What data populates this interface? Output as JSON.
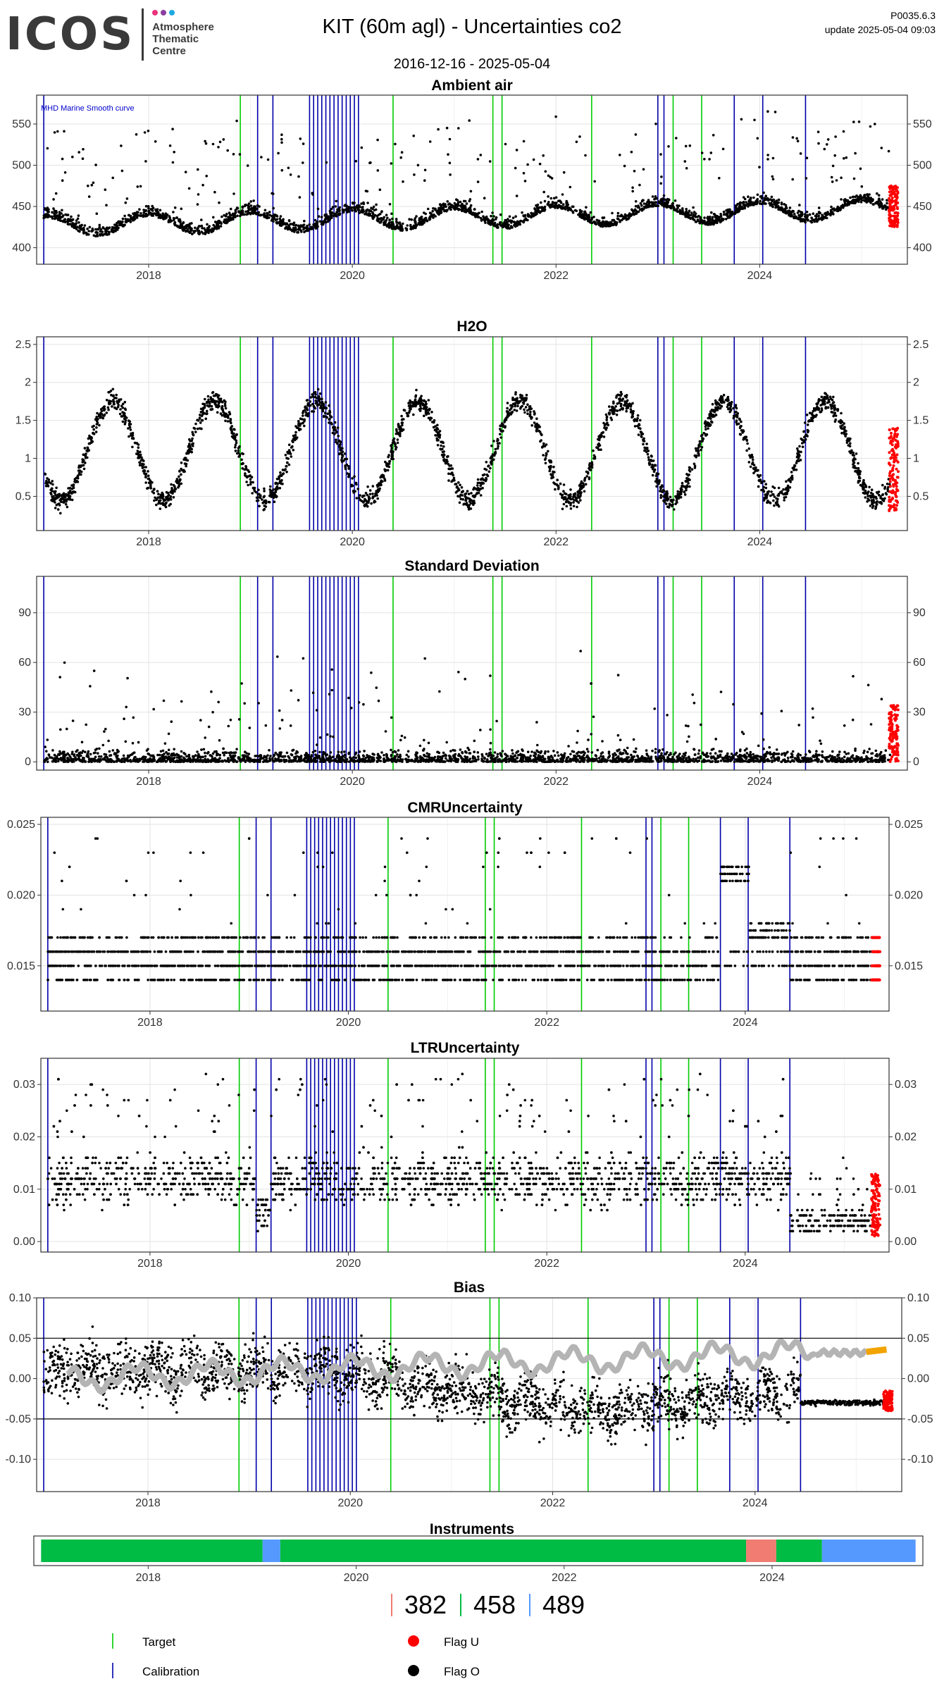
{
  "header": {
    "logo_text": "ICOS",
    "logo_sub_1": "Atmosphere",
    "logo_sub_2": "Thematic",
    "logo_sub_3": "Centre",
    "title": "KIT  (60m agl) - Uncertainties co2",
    "date_range": "2016-12-16 - 2025-05-04",
    "version": "P0035.6.3",
    "update": "update  2025-05-04 09:03"
  },
  "colors": {
    "target": "#00cc00",
    "calibration": "#0000aa",
    "flag_u": "#ff0000",
    "flag_o": "#000000",
    "smooth_curve": "#b4b4b4",
    "bias_recent": "#f2a400",
    "instrument_382": "#f07c72",
    "instrument_458": "#00bb44",
    "instrument_489": "#5599ff"
  },
  "events": {
    "target": [
      2018.9,
      2020.4,
      2021.38,
      2021.47,
      2022.35,
      2023.15,
      2023.43
    ],
    "calibration": [
      2016.97,
      2019.07,
      2019.22,
      2019.58,
      2019.62,
      2019.66,
      2019.7,
      2019.74,
      2019.78,
      2019.82,
      2019.86,
      2019.9,
      2019.94,
      2019.98,
      2020.02,
      2020.06,
      2023.0,
      2023.06,
      2023.75,
      2024.03,
      2024.45
    ]
  },
  "chart_data": [
    {
      "type": "scatter",
      "title": "Ambient air",
      "xlim": [
        2016.9,
        2025.45
      ],
      "ylim": [
        380,
        585
      ],
      "yticks": [
        400,
        450,
        500,
        550
      ],
      "xticks": [
        2018,
        2020,
        2022,
        2024
      ],
      "annotation": "MHD Marine Smooth curve",
      "baseline": 430,
      "seasonal_amp": 12,
      "trend": 2.4,
      "noise": 22,
      "spike_prob": 0.08,
      "spike_max": 110,
      "red_tail_range": [
        425,
        475
      ]
    },
    {
      "type": "scatter",
      "title": "H2O",
      "xlim": [
        2016.9,
        2025.45
      ],
      "ylim": [
        0.05,
        2.6
      ],
      "yticks": [
        0.5,
        1.0,
        1.5,
        2.0,
        2.5
      ],
      "xticks": [
        2018,
        2020,
        2022,
        2024
      ],
      "seasonal_low": 0.45,
      "seasonal_high": 1.75,
      "noise": 0.22,
      "red_tail_range": [
        0.3,
        1.4
      ]
    },
    {
      "type": "scatter",
      "title": "Standard Deviation",
      "xlim": [
        2016.9,
        2025.45
      ],
      "ylim": [
        -5,
        112
      ],
      "yticks": [
        0,
        30,
        60,
        90
      ],
      "xticks": [
        2018,
        2020,
        2022,
        2024
      ],
      "base_max": 8,
      "spike_prob": 0.06,
      "spike_max": 70,
      "red_tail_range": [
        0,
        35
      ]
    },
    {
      "type": "scatter",
      "title": "CMRUncertainty",
      "xlim": [
        2016.9,
        2025.45
      ],
      "ylim": [
        0.0118,
        0.0255
      ],
      "yticks": [
        0.015,
        0.02,
        0.025
      ],
      "ytick_labels": [
        "0.015",
        "0.020",
        "0.025"
      ],
      "xticks": [
        2018,
        2020,
        2022,
        2024
      ],
      "levels": [
        0.014,
        0.015,
        0.016,
        0.017
      ],
      "high_levels_2023": [
        0.021,
        0.022
      ],
      "high_levels_2024": [
        0.017,
        0.018
      ],
      "red_tail_levels": [
        0.014,
        0.015,
        0.016,
        0.017
      ]
    },
    {
      "type": "scatter",
      "title": "LTRUncertainty",
      "xlim": [
        2016.9,
        2025.45
      ],
      "ylim": [
        -0.002,
        0.035
      ],
      "yticks": [
        0.0,
        0.01,
        0.02,
        0.03
      ],
      "ytick_labels": [
        "0.00",
        "0.01",
        "0.02",
        "0.03"
      ],
      "xticks": [
        2018,
        2020,
        2022,
        2024
      ],
      "main_range": [
        0.004,
        0.022
      ],
      "late_range": [
        0.002,
        0.006
      ],
      "red_tail_range": [
        0.001,
        0.013
      ]
    },
    {
      "type": "scatter",
      "title": "Bias",
      "xlim": [
        2016.9,
        2025.45
      ],
      "ylim": [
        -0.14,
        0.1
      ],
      "yticks": [
        -0.1,
        -0.05,
        0.0,
        0.05,
        0.1
      ],
      "ytick_labels": [
        "-0.10",
        "-0.05",
        "0.00",
        "0.05",
        "0.10"
      ],
      "xticks": [
        2018,
        2020,
        2022,
        2024
      ],
      "hlines": [
        0.05,
        -0.05
      ],
      "smooth_start": 0.0,
      "smooth_end": 0.035,
      "late_level": -0.03,
      "red_tail_range": [
        -0.04,
        -0.015
      ]
    },
    {
      "type": "bar",
      "title": "Instruments",
      "xlim": [
        2016.9,
        2025.45
      ],
      "xticks": [
        2018,
        2020,
        2022,
        2024
      ],
      "segments": [
        {
          "instrument": "458",
          "start": 2016.97,
          "end": 2019.1
        },
        {
          "instrument": "489",
          "start": 2019.1,
          "end": 2019.27
        },
        {
          "instrument": "458",
          "start": 2019.27,
          "end": 2023.75
        },
        {
          "instrument": "382",
          "start": 2023.75,
          "end": 2024.04
        },
        {
          "instrument": "458",
          "start": 2024.04,
          "end": 2024.48
        },
        {
          "instrument": "489",
          "start": 2024.48,
          "end": 2025.38
        }
      ]
    }
  ],
  "instrument_legend": [
    "382",
    "458",
    "489"
  ],
  "legend": {
    "target": "Target",
    "calibration": "Calibration",
    "flag_u": "Flag U",
    "flag_o": "Flag O"
  }
}
